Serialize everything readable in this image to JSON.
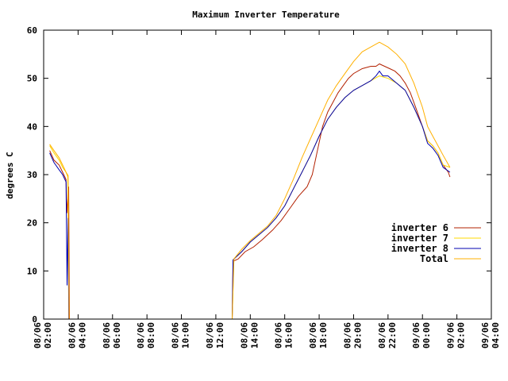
{
  "chart_data": {
    "type": "line",
    "title": "Maximum Inverter Temperature",
    "xlabel": "",
    "ylabel": "degrees C",
    "xlim": [
      0,
      26
    ],
    "ylim": [
      0,
      60
    ],
    "yticks": [
      0,
      10,
      20,
      30,
      40,
      50,
      60
    ],
    "xticks": [
      {
        "at": 0,
        "date": "08/06",
        "time": "02:00"
      },
      {
        "at": 2,
        "date": "08/06",
        "time": "04:00"
      },
      {
        "at": 4,
        "date": "08/06",
        "time": "06:00"
      },
      {
        "at": 6,
        "date": "08/06",
        "time": "08:00"
      },
      {
        "at": 8,
        "date": "08/06",
        "time": "10:00"
      },
      {
        "at": 10,
        "date": "08/06",
        "time": "12:00"
      },
      {
        "at": 12,
        "date": "08/06",
        "time": "14:00"
      },
      {
        "at": 14,
        "date": "08/06",
        "time": "16:00"
      },
      {
        "at": 16,
        "date": "08/06",
        "time": "18:00"
      },
      {
        "at": 18,
        "date": "08/06",
        "time": "20:00"
      },
      {
        "at": 20,
        "date": "08/06",
        "time": "22:00"
      },
      {
        "at": 22,
        "date": "09/06",
        "time": "00:00"
      },
      {
        "at": 24,
        "date": "09/06",
        "time": "02:00"
      },
      {
        "at": 26,
        "date": "09/06",
        "time": "04:00"
      }
    ],
    "legend_position": "right",
    "series": [
      {
        "name": "inverter 6",
        "color": "#b22000",
        "segments": [
          [
            [
              0.35,
              35
            ],
            [
              0.6,
              33
            ],
            [
              0.9,
              32
            ],
            [
              1.1,
              30.5
            ],
            [
              1.3,
              29
            ],
            [
              1.35,
              22
            ],
            [
              1.45,
              27.5
            ],
            [
              1.5,
              0
            ]
          ],
          [
            [
              10.95,
              0
            ],
            [
              11.0,
              12
            ],
            [
              11.3,
              12.5
            ],
            [
              11.7,
              14
            ],
            [
              12.2,
              15
            ],
            [
              12.7,
              16.5
            ],
            [
              13.3,
              18.5
            ],
            [
              13.8,
              20.5
            ],
            [
              14.3,
              23
            ],
            [
              14.8,
              25.5
            ],
            [
              15.3,
              27.5
            ],
            [
              15.6,
              30
            ],
            [
              15.9,
              35
            ],
            [
              16.2,
              40
            ],
            [
              16.5,
              43
            ],
            [
              16.8,
              45
            ],
            [
              17.1,
              47
            ],
            [
              17.4,
              48.5
            ],
            [
              17.7,
              50
            ],
            [
              18.0,
              51
            ],
            [
              18.5,
              52
            ],
            [
              19.0,
              52.5
            ],
            [
              19.3,
              52.5
            ],
            [
              19.5,
              53
            ],
            [
              19.8,
              52.5
            ],
            [
              20.1,
              52
            ],
            [
              20.4,
              51.5
            ],
            [
              20.7,
              50.5
            ],
            [
              21.0,
              49
            ],
            [
              21.3,
              47
            ],
            [
              21.6,
              44
            ],
            [
              21.8,
              42
            ],
            [
              22.0,
              40
            ],
            [
              22.3,
              37
            ],
            [
              22.6,
              36
            ],
            [
              22.9,
              34.5
            ],
            [
              23.2,
              32
            ],
            [
              23.5,
              30.5
            ],
            [
              23.6,
              29.5
            ]
          ]
        ]
      },
      {
        "name": "inverter 7",
        "color": "#ffd800",
        "segments": [
          [
            [
              0.35,
              36
            ],
            [
              0.6,
              34.5
            ],
            [
              0.9,
              33
            ],
            [
              1.1,
              31.5
            ],
            [
              1.3,
              30.5
            ],
            [
              1.4,
              29.5
            ],
            [
              1.47,
              0
            ]
          ],
          [
            [
              10.95,
              0
            ],
            [
              11.05,
              12.5
            ],
            [
              11.5,
              14
            ],
            [
              12,
              16
            ],
            [
              12.5,
              17.5
            ],
            [
              13,
              19
            ],
            [
              13.5,
              21
            ],
            [
              14,
              23.5
            ],
            [
              14.5,
              27
            ],
            [
              15,
              30.5
            ],
            [
              15.5,
              34
            ],
            [
              16,
              38
            ],
            [
              16.5,
              41.5
            ],
            [
              17,
              44
            ],
            [
              17.5,
              46
            ],
            [
              18,
              47.5
            ],
            [
              18.5,
              48.5
            ],
            [
              19,
              49.5
            ],
            [
              19.5,
              50.5
            ],
            [
              20,
              50
            ],
            [
              20.5,
              49
            ],
            [
              21,
              47.5
            ],
            [
              21.5,
              44
            ],
            [
              22,
              40
            ],
            [
              22.3,
              37
            ],
            [
              22.6,
              36
            ],
            [
              22.9,
              34.5
            ],
            [
              23.2,
              32
            ],
            [
              23.6,
              31.5
            ]
          ]
        ]
      },
      {
        "name": "inverter 8",
        "color": "#0000b0",
        "segments": [
          [
            [
              0.35,
              34.5
            ],
            [
              0.6,
              32.5
            ],
            [
              0.9,
              31
            ],
            [
              1.1,
              30
            ],
            [
              1.3,
              28.5
            ],
            [
              1.36,
              7
            ],
            [
              1.42,
              21
            ],
            [
              1.46,
              0
            ]
          ],
          [
            [
              10.95,
              0
            ],
            [
              11.0,
              12.3
            ],
            [
              11.5,
              14
            ],
            [
              12,
              16
            ],
            [
              12.5,
              17.5
            ],
            [
              13,
              19
            ],
            [
              13.5,
              21
            ],
            [
              14,
              23.5
            ],
            [
              14.5,
              27
            ],
            [
              15,
              30.5
            ],
            [
              15.5,
              34
            ],
            [
              16,
              38
            ],
            [
              16.5,
              41.5
            ],
            [
              17,
              44
            ],
            [
              17.5,
              46
            ],
            [
              18,
              47.5
            ],
            [
              18.5,
              48.5
            ],
            [
              19,
              49.5
            ],
            [
              19.3,
              50.5
            ],
            [
              19.5,
              51.5
            ],
            [
              19.7,
              50.5
            ],
            [
              20,
              50.5
            ],
            [
              20.5,
              49
            ],
            [
              21,
              47.5
            ],
            [
              21.5,
              44
            ],
            [
              22,
              40
            ],
            [
              22.3,
              36.5
            ],
            [
              22.6,
              35.5
            ],
            [
              22.9,
              34
            ],
            [
              23.2,
              31.5
            ],
            [
              23.6,
              30.5
            ]
          ]
        ]
      },
      {
        "name": "Total",
        "color": "#ffb000",
        "segments": [
          [
            [
              0.35,
              36.3
            ],
            [
              0.6,
              35
            ],
            [
              0.9,
              33.5
            ],
            [
              1.1,
              32
            ],
            [
              1.3,
              30.5
            ],
            [
              1.42,
              29.8
            ],
            [
              1.48,
              0
            ]
          ],
          [
            [
              10.95,
              0
            ],
            [
              11.05,
              12.5
            ],
            [
              11.5,
              14.5
            ],
            [
              12,
              16.3
            ],
            [
              12.5,
              17.8
            ],
            [
              13,
              19.3
            ],
            [
              13.5,
              21.5
            ],
            [
              14,
              25
            ],
            [
              14.5,
              29
            ],
            [
              15,
              33.5
            ],
            [
              15.5,
              37.5
            ],
            [
              16,
              41.5
            ],
            [
              16.5,
              45.5
            ],
            [
              17,
              48.5
            ],
            [
              17.5,
              51
            ],
            [
              18,
              53.5
            ],
            [
              18.5,
              55.5
            ],
            [
              19,
              56.5
            ],
            [
              19.5,
              57.5
            ],
            [
              20,
              56.5
            ],
            [
              20.5,
              55
            ],
            [
              21,
              53
            ],
            [
              21.5,
              49
            ],
            [
              22,
              44
            ],
            [
              22.3,
              40
            ],
            [
              22.6,
              38
            ],
            [
              22.9,
              36
            ],
            [
              23.2,
              34
            ],
            [
              23.6,
              31.5
            ]
          ]
        ]
      }
    ]
  }
}
